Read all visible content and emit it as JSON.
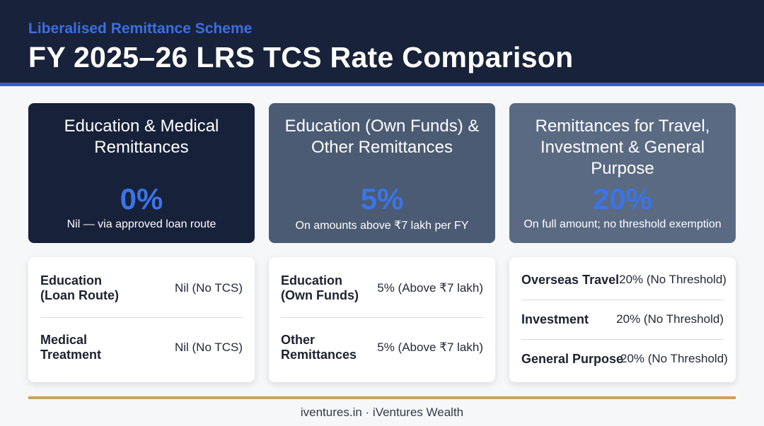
{
  "header": {
    "subtitle": "Liberalised Remittance Scheme",
    "title": "FY 2025–26 LRS TCS Rate Comparison"
  },
  "cards": [
    {
      "title": "Education & Medical Remittances",
      "rate": "0%",
      "note": "Nil — via approved loan route"
    },
    {
      "title": "Education (Own Funds) & Other Remittances",
      "rate": "5%",
      "note": "On amounts above ₹7 lakh per FY"
    },
    {
      "title": "Remittances for Travel, Investment & General Purpose",
      "rate": "20%",
      "note": "On full amount; no threshold exemption"
    }
  ],
  "panels": [
    {
      "rows": [
        {
          "label": "Education (Loan Route)",
          "value": "Nil (No TCS)"
        },
        {
          "label": "Medical Treatment",
          "value": "Nil (No TCS)"
        }
      ]
    },
    {
      "rows": [
        {
          "label": "Education (Own Funds)",
          "value": "5% (Above ₹7 lakh)"
        },
        {
          "label": "Other Remittances",
          "value": "5% (Above ₹7 lakh)"
        }
      ]
    },
    {
      "rows": [
        {
          "label": "Overseas Travel",
          "value": "20% (No Threshold)"
        },
        {
          "label": "Investment",
          "value": "20% (No Threshold)"
        },
        {
          "label": "General Purpose",
          "value": "20% (No Threshold)"
        }
      ]
    }
  ],
  "footer": {
    "text": "iventures.in · iVentures Wealth"
  },
  "colors": {
    "header_bg": "#18223a",
    "accent_blue": "#3a6fe0",
    "gold_rule": "#c9a452"
  }
}
